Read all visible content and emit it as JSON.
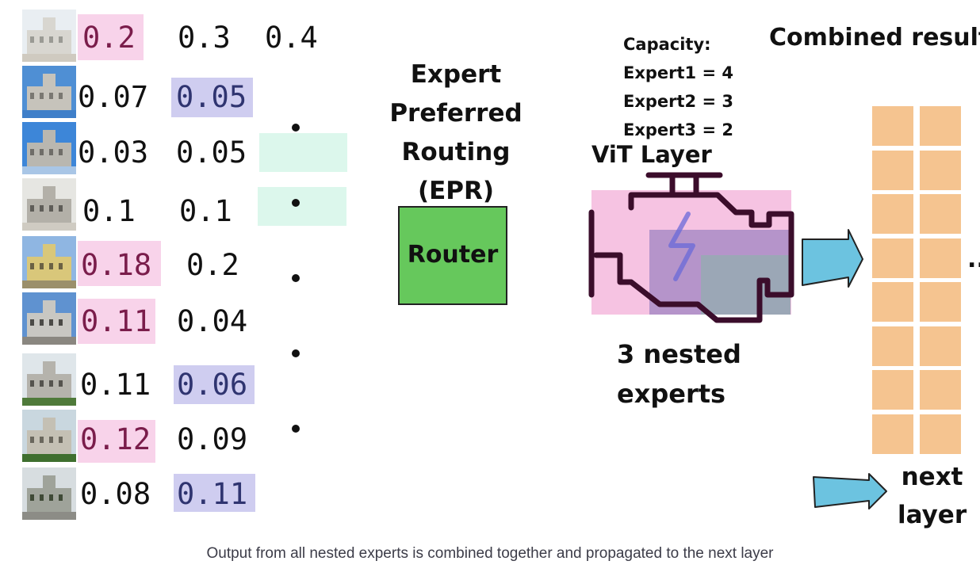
{
  "patches": [
    {
      "sky": "#e9eef2",
      "building": "#d8d6d0",
      "detail": "#9a9a94",
      "ground": "#cfcac0"
    },
    {
      "sky": "#4f8fd4",
      "building": "#c6c3bb",
      "detail": "#7a7872",
      "ground": "#3f7fc9"
    },
    {
      "sky": "#3d86d8",
      "building": "#b9b7b0",
      "detail": "#6f6d68",
      "ground": "#a9c6e6"
    },
    {
      "sky": "#e6e6e2",
      "building": "#b3b0a8",
      "detail": "#5f5d58",
      "ground": "#cfcbc2"
    },
    {
      "sky": "#8fb6e2",
      "building": "#d9c77a",
      "detail": "#6b6244",
      "ground": "#9b8f6a"
    },
    {
      "sky": "#5f92d0",
      "building": "#c8c7c2",
      "detail": "#4b4a46",
      "ground": "#8a8780"
    },
    {
      "sky": "#dfe6ea",
      "building": "#b5b3ac",
      "detail": "#55534e",
      "ground": "#4f7a3a"
    },
    {
      "sky": "#c9d7df",
      "building": "#c4c0b4",
      "detail": "#6a675d",
      "ground": "#3f6f2f"
    },
    {
      "sky": "#d7dde0",
      "building": "#9fa39a",
      "detail": "#3f4a36",
      "ground": "#8c8c86"
    }
  ],
  "scores": [
    [
      "0.2",
      "0.3",
      "0.4"
    ],
    [
      "0.07",
      "0.05"
    ],
    [
      "0.03",
      "0.05"
    ],
    [
      "0.1",
      "0.1"
    ],
    [
      "0.18",
      "0.2"
    ],
    [
      "0.11",
      "0.04"
    ],
    [
      "0.11",
      "0.06"
    ],
    [
      "0.12",
      "0.09"
    ],
    [
      "0.08",
      "0.11"
    ]
  ],
  "router": {
    "title_lines": [
      "Expert",
      "Preferred",
      "Routing",
      "(EPR)"
    ],
    "label": "Router",
    "color": "#66c85c"
  },
  "capacity": {
    "header": "Capacity:",
    "lines": [
      "Expert1 = 4",
      "Expert2 = 3",
      "Expert3 = 2"
    ]
  },
  "vit_label": "ViT Layer",
  "nested_label_lines": [
    "3 nested",
    "experts"
  ],
  "combined_label": "Combined results",
  "next_layer_lines": [
    "next",
    "layer"
  ],
  "more_indicator": "..",
  "caption": "Output from all nested experts is combined together and propagated to the next layer",
  "colors": {
    "expert1_highlight": "#f8d3ea",
    "expert2_highlight": "#cfcdf0",
    "expert3_highlight": "#dcf7ec",
    "result_cell": "#f5c490",
    "arrow": "#6cc3e0"
  }
}
